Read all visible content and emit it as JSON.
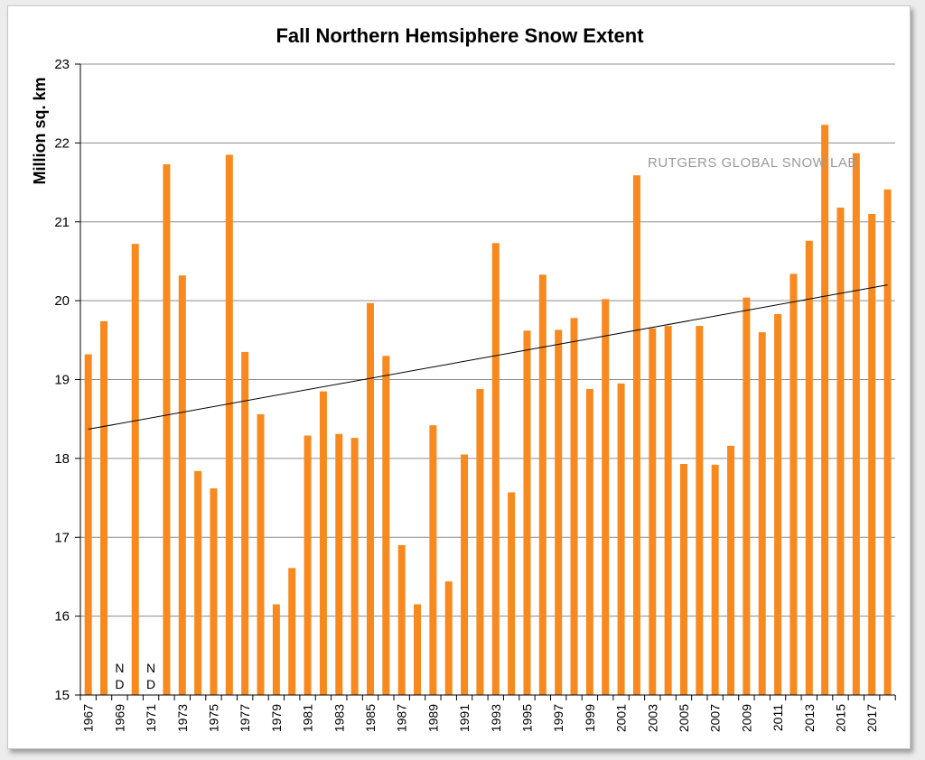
{
  "chart_data": {
    "type": "bar",
    "title": "Fall Northern Hemsiphere Snow Extent",
    "ylabel": "Million sq. km",
    "xlabel": "",
    "ylim": [
      15,
      23
    ],
    "yticks": [
      15,
      16,
      17,
      18,
      19,
      20,
      21,
      22,
      23
    ],
    "grid": true,
    "bar_color": "#f7891f",
    "trendline": {
      "start": 18.37,
      "end": 20.2,
      "color": "#000000"
    },
    "watermark": "RUTGERS GLOBAL SNOW LAB",
    "missing_label": [
      "N",
      "D"
    ],
    "years": [
      1967,
      1968,
      1969,
      1970,
      1971,
      1972,
      1973,
      1974,
      1975,
      1976,
      1977,
      1978,
      1979,
      1980,
      1981,
      1982,
      1983,
      1984,
      1985,
      1986,
      1987,
      1988,
      1989,
      1990,
      1991,
      1992,
      1993,
      1994,
      1995,
      1996,
      1997,
      1998,
      1999,
      2000,
      2001,
      2002,
      2003,
      2004,
      2005,
      2006,
      2007,
      2008,
      2009,
      2010,
      2011,
      2012,
      2013,
      2014,
      2015,
      2016,
      2017,
      2018
    ],
    "xtick_labels": [
      "1967",
      "1969",
      "1971",
      "1973",
      "1975",
      "1977",
      "1979",
      "1981",
      "1983",
      "1985",
      "1987",
      "1989",
      "1991",
      "1993",
      "1995",
      "1997",
      "1999",
      "2001",
      "2003",
      "2005",
      "2007",
      "2009",
      "2011",
      "2013",
      "2015",
      "2017"
    ],
    "values": [
      19.32,
      19.74,
      null,
      20.72,
      null,
      21.73,
      20.32,
      17.84,
      17.62,
      21.85,
      19.35,
      18.56,
      16.15,
      16.61,
      18.29,
      18.85,
      18.31,
      18.26,
      19.97,
      19.3,
      16.9,
      16.15,
      18.42,
      16.44,
      18.05,
      18.88,
      20.73,
      17.57,
      19.62,
      20.33,
      19.63,
      19.78,
      18.88,
      20.02,
      18.95,
      21.59,
      19.65,
      19.68,
      17.93,
      19.68,
      17.92,
      18.16,
      20.04,
      19.6,
      19.83,
      20.34,
      20.76,
      22.23,
      21.18,
      21.87,
      21.1,
      21.41
    ]
  }
}
